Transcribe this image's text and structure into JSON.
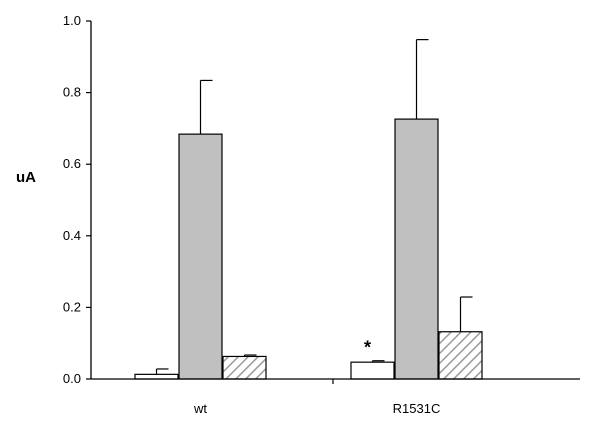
{
  "chart_data": {
    "type": "bar",
    "title": "",
    "xlabel": "",
    "ylabel": "uA",
    "ylim": [
      0,
      1.0
    ],
    "yticks": [
      "0.0",
      "0.2",
      "0.4",
      "0.6",
      "0.8",
      "1.0"
    ],
    "categories": [
      "wt",
      "R1531C"
    ],
    "grid": false,
    "legend": "none",
    "series": [
      {
        "fill": "white",
        "color": "#ffffff",
        "values": [
          0.013,
          0.047
        ],
        "errors": [
          0.015,
          0.004
        ]
      },
      {
        "fill": "gray",
        "color": "#c0c0c0",
        "values": [
          0.684,
          0.726
        ],
        "errors": [
          0.15,
          0.222
        ]
      },
      {
        "fill": "hatched",
        "color": "#a0a0a0",
        "values": [
          0.063,
          0.132
        ],
        "errors": [
          0.004,
          0.097
        ]
      }
    ],
    "annotations": [
      {
        "text": "*",
        "category": "R1531C",
        "series": 0
      }
    ]
  }
}
